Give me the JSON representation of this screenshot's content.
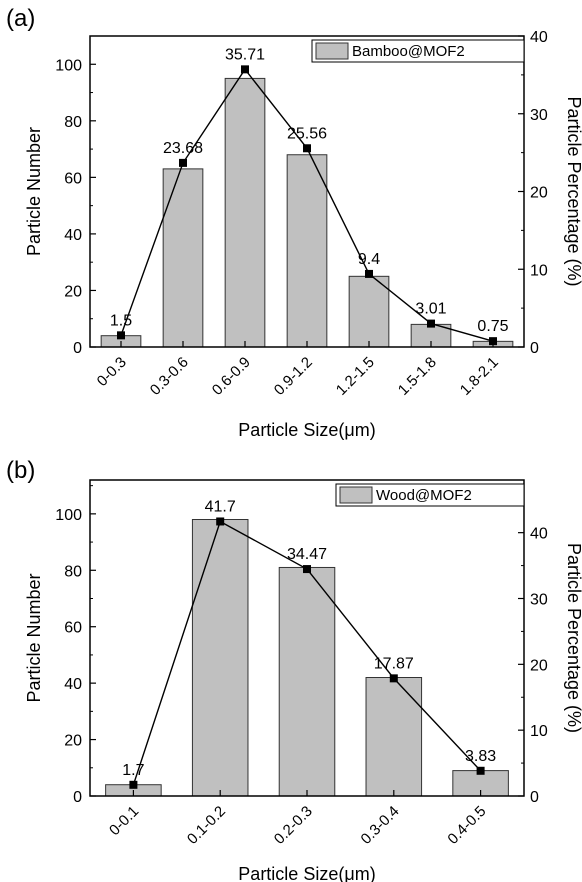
{
  "chart_data": [
    {
      "type": "bar",
      "panel_label": "(a)",
      "xlabel": "Particle Size(μm)",
      "ylabel": "Particle Number",
      "y2label": "Particle Percentage (%)",
      "ylim": [
        0,
        110
      ],
      "y2lim": [
        0,
        40
      ],
      "yticks": [
        0,
        20,
        40,
        60,
        80,
        100
      ],
      "y2ticks": [
        0,
        10,
        20,
        30,
        40
      ],
      "categories": [
        "0-0.3",
        "0.3-0.6",
        "0.6-0.9",
        "0.9-1.2",
        "1.2-1.5",
        "1.5-1.8",
        "1.8-2.1"
      ],
      "series": [
        {
          "name": "Bamboo@MOF2",
          "kind": "bar",
          "axis": "left",
          "values": [
            4,
            63,
            95,
            68,
            25,
            8,
            2
          ],
          "color": "#c0c0c0"
        },
        {
          "kind": "line",
          "axis": "right",
          "values": [
            1.5,
            23.68,
            35.71,
            25.56,
            9.4,
            3.01,
            0.75
          ],
          "labels": [
            "1.5",
            "23.68",
            "35.71",
            "25.56",
            "9.4",
            "3.01",
            "0.75"
          ],
          "color": "#000000"
        }
      ],
      "legend": {
        "position": "top-right"
      }
    },
    {
      "type": "bar",
      "panel_label": "(b)",
      "xlabel": "Particle Size(μm)",
      "ylabel": "Particle Number",
      "y2label": "Particle Percentage (%)",
      "ylim": [
        0,
        112
      ],
      "y2lim": [
        0,
        48
      ],
      "yticks": [
        0,
        20,
        40,
        60,
        80,
        100
      ],
      "y2ticks": [
        0,
        10,
        20,
        30,
        40
      ],
      "categories": [
        "0-0.1",
        "0.1-0.2",
        "0.2-0.3",
        "0.3-0.4",
        "0.4-0.5"
      ],
      "series": [
        {
          "name": "Wood@MOF2",
          "kind": "bar",
          "axis": "left",
          "values": [
            4,
            98,
            81,
            42,
            9
          ],
          "color": "#c0c0c0"
        },
        {
          "kind": "line",
          "axis": "right",
          "values": [
            1.7,
            41.7,
            34.47,
            17.87,
            3.83
          ],
          "labels": [
            "1.7",
            "41.7",
            "34.47",
            "17.87",
            "3.83"
          ],
          "color": "#000000"
        }
      ],
      "legend": {
        "position": "top-right"
      }
    }
  ]
}
